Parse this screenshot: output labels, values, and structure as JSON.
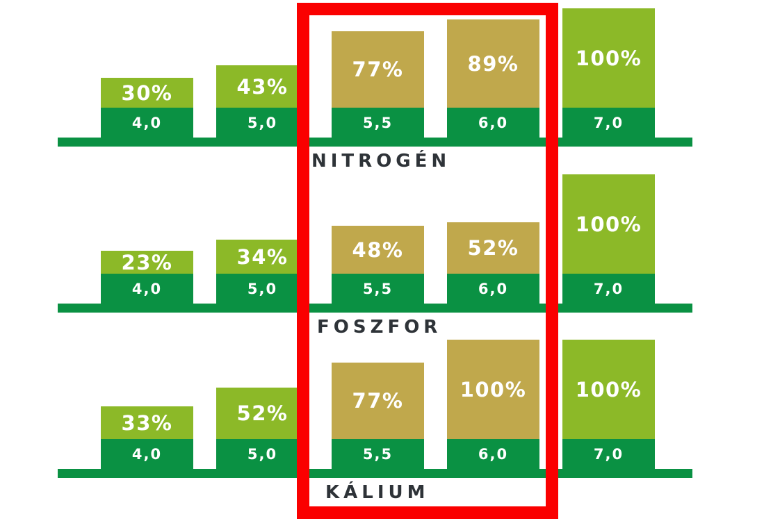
{
  "colors": {
    "light_green": "#8CB928",
    "dark_green": "#0A9143",
    "gold": "#C0A84C",
    "red": "#FA0000",
    "title_text": "#2E3338",
    "bar_text": "#FFFFFF"
  },
  "highlight_box": {
    "color": "#FA0000",
    "highlighted_categories": [
      "5,5",
      "6,0"
    ]
  },
  "chart_data": [
    {
      "type": "bar",
      "title": "NITROGÉN",
      "categories": [
        "4,0",
        "5,0",
        "5,5",
        "6,0",
        "7,0"
      ],
      "values": [
        30,
        43,
        77,
        89,
        100
      ],
      "ylim": [
        0,
        100
      ],
      "legend_position": "none",
      "grid": false,
      "bars": [
        {
          "ph_label": "4,0",
          "percent": 30,
          "percent_label": "30%",
          "highlighted": false
        },
        {
          "ph_label": "5,0",
          "percent": 43,
          "percent_label": "43%",
          "highlighted": false
        },
        {
          "ph_label": "5,5",
          "percent": 77,
          "percent_label": "77%",
          "highlighted": true
        },
        {
          "ph_label": "6,0",
          "percent": 89,
          "percent_label": "89%",
          "highlighted": true
        },
        {
          "ph_label": "7,0",
          "percent": 100,
          "percent_label": "100%",
          "highlighted": false
        }
      ]
    },
    {
      "type": "bar",
      "title": "FOSZFOR",
      "categories": [
        "4,0",
        "5,0",
        "5,5",
        "6,0",
        "7,0"
      ],
      "values": [
        23,
        34,
        48,
        52,
        100
      ],
      "ylim": [
        0,
        100
      ],
      "legend_position": "none",
      "grid": false,
      "bars": [
        {
          "ph_label": "4,0",
          "percent": 23,
          "percent_label": "23%",
          "highlighted": false
        },
        {
          "ph_label": "5,0",
          "percent": 34,
          "percent_label": "34%",
          "highlighted": false
        },
        {
          "ph_label": "5,5",
          "percent": 48,
          "percent_label": "48%",
          "highlighted": true
        },
        {
          "ph_label": "6,0",
          "percent": 52,
          "percent_label": "52%",
          "highlighted": true
        },
        {
          "ph_label": "7,0",
          "percent": 100,
          "percent_label": "100%",
          "highlighted": false
        }
      ]
    },
    {
      "type": "bar",
      "title": "KÁLIUM",
      "categories": [
        "4,0",
        "5,0",
        "5,5",
        "6,0",
        "7,0"
      ],
      "values": [
        33,
        52,
        77,
        100,
        100
      ],
      "ylim": [
        0,
        100
      ],
      "legend_position": "none",
      "grid": false,
      "bars": [
        {
          "ph_label": "4,0",
          "percent": 33,
          "percent_label": "33%",
          "highlighted": false
        },
        {
          "ph_label": "5,0",
          "percent": 52,
          "percent_label": "52%",
          "highlighted": false
        },
        {
          "ph_label": "5,5",
          "percent": 77,
          "percent_label": "77%",
          "highlighted": true
        },
        {
          "ph_label": "6,0",
          "percent": 100,
          "percent_label": "100%",
          "highlighted": true
        },
        {
          "ph_label": "7,0",
          "percent": 100,
          "percent_label": "100%",
          "highlighted": false
        }
      ]
    }
  ]
}
